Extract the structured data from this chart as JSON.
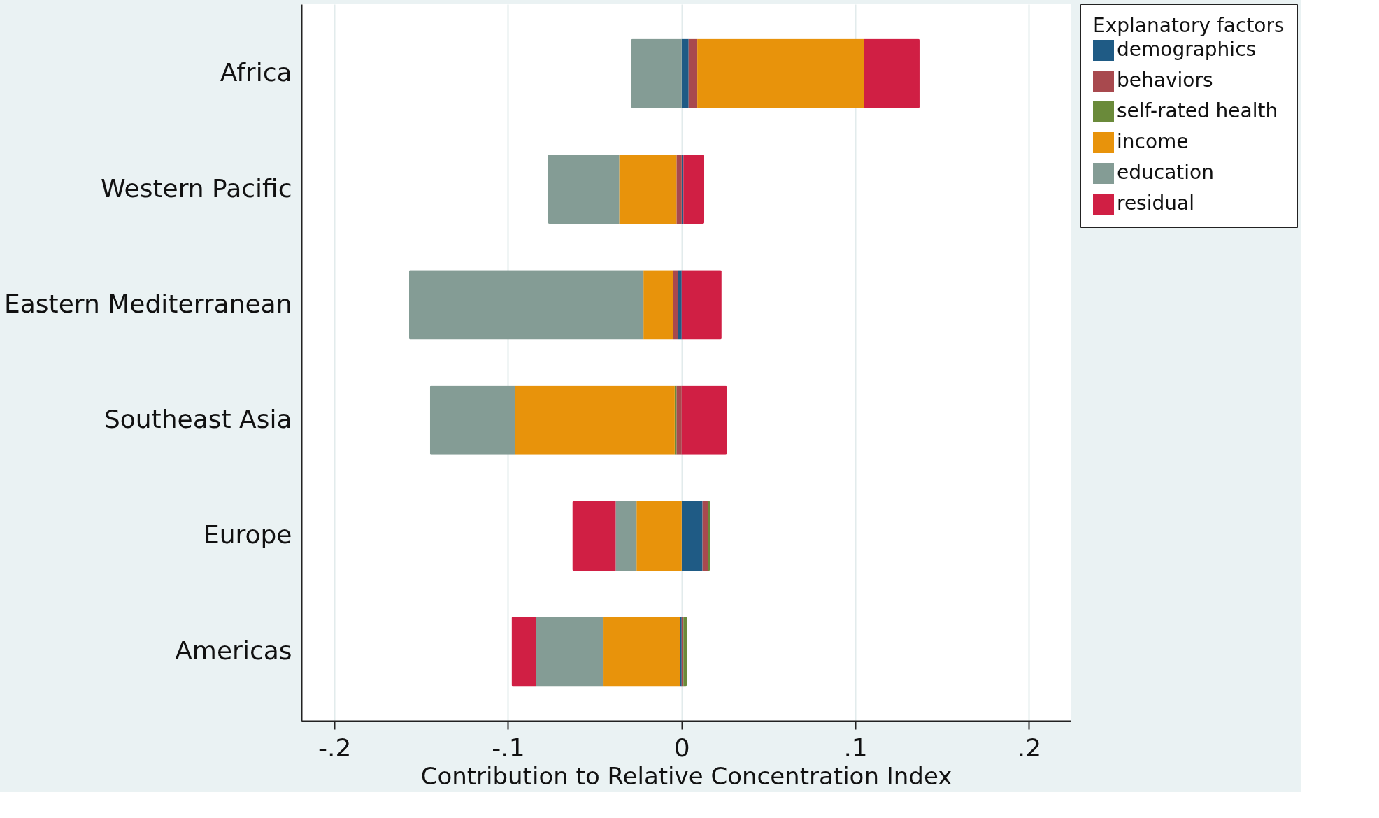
{
  "chart_data": {
    "type": "bar",
    "orientation": "horizontal",
    "stacked": true,
    "categories": [
      "Africa",
      "Western Pacific",
      "Eastern Mediterranean",
      "Southeast Asia",
      "Europe",
      "Americas"
    ],
    "series": [
      {
        "name": "demographics",
        "color": "#1f5b85",
        "values": [
          0.004,
          0.001,
          -0.002,
          0,
          0.012,
          -0.001
        ]
      },
      {
        "name": "behaviors",
        "color": "#a8494e",
        "values": [
          0.005,
          -0.003,
          -0.003,
          -0.003,
          0.003,
          0.001
        ]
      },
      {
        "name": "self-rated health",
        "color": "#6a8a3a",
        "values": [
          0,
          0,
          0,
          -0.001,
          0.0015,
          0.002
        ]
      },
      {
        "name": "income",
        "color": "#e8930b",
        "values": [
          0.096,
          -0.033,
          -0.017,
          -0.092,
          -0.026,
          -0.044
        ]
      },
      {
        "name": "education",
        "color": "#849c95",
        "values": [
          -0.029,
          -0.041,
          -0.135,
          -0.049,
          -0.012,
          -0.039
        ]
      },
      {
        "name": "residual",
        "color": "#d01f44",
        "values": [
          0.032,
          0.012,
          0.023,
          0.026,
          -0.025,
          -0.014
        ]
      }
    ],
    "xlabel": "Contribution to Relative Concentration Index",
    "legend_title": "Explanatory factors",
    "legend": "right",
    "grid": "x",
    "xlim": [
      -0.219,
      0.224
    ],
    "xticks": [
      {
        "value": -0.2,
        "label": "-.2"
      },
      {
        "value": -0.1,
        "label": "-.1"
      },
      0,
      {
        "value": 0.1,
        "label": ".1"
      },
      {
        "value": 0.2,
        "label": ".2"
      }
    ]
  }
}
